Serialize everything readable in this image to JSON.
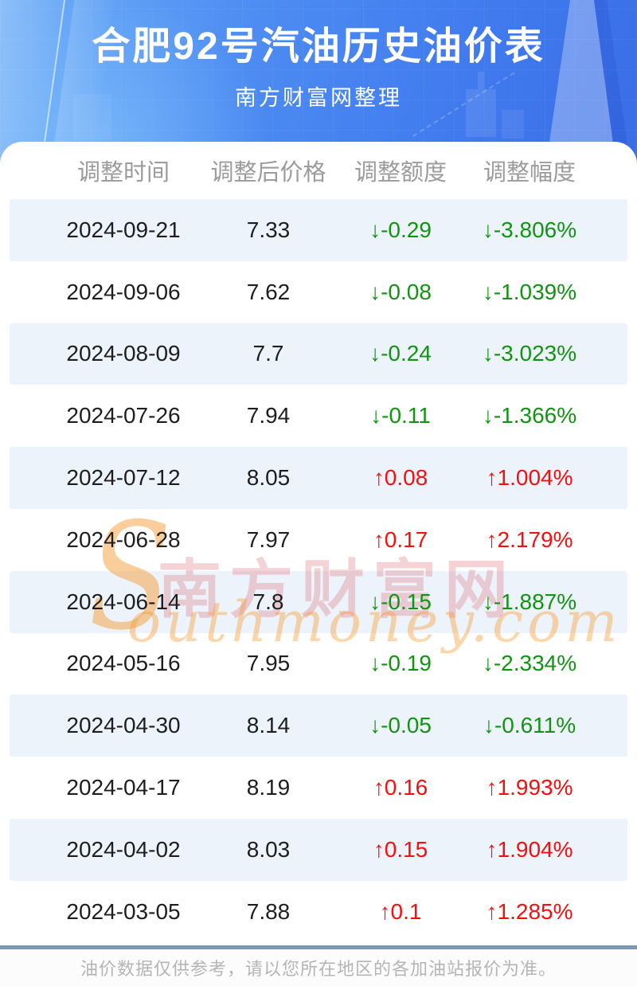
{
  "header": {
    "title": "合肥92号汽油历史油价表",
    "subtitle": "南方财富网整理"
  },
  "table": {
    "columns": [
      "调整时间",
      "调整后价格",
      "调整额度",
      "调整幅度"
    ],
    "arrows": {
      "up": "↑",
      "down": "↓"
    },
    "rows": [
      {
        "date": "2024-09-21",
        "price": "7.33",
        "change": "-0.29",
        "percent": "-3.806%",
        "direction": "down"
      },
      {
        "date": "2024-09-06",
        "price": "7.62",
        "change": "-0.08",
        "percent": "-1.039%",
        "direction": "down"
      },
      {
        "date": "2024-08-09",
        "price": "7.7",
        "change": "-0.24",
        "percent": "-3.023%",
        "direction": "down"
      },
      {
        "date": "2024-07-26",
        "price": "7.94",
        "change": "-0.11",
        "percent": "-1.366%",
        "direction": "down"
      },
      {
        "date": "2024-07-12",
        "price": "8.05",
        "change": "0.08",
        "percent": "1.004%",
        "direction": "up"
      },
      {
        "date": "2024-06-28",
        "price": "7.97",
        "change": "0.17",
        "percent": "2.179%",
        "direction": "up"
      },
      {
        "date": "2024-06-14",
        "price": "7.8",
        "change": "-0.15",
        "percent": "-1.887%",
        "direction": "down"
      },
      {
        "date": "2024-05-16",
        "price": "7.95",
        "change": "-0.19",
        "percent": "-2.334%",
        "direction": "down"
      },
      {
        "date": "2024-04-30",
        "price": "8.14",
        "change": "-0.05",
        "percent": "-0.611%",
        "direction": "down"
      },
      {
        "date": "2024-04-17",
        "price": "8.19",
        "change": "0.16",
        "percent": "1.993%",
        "direction": "up"
      },
      {
        "date": "2024-04-02",
        "price": "8.03",
        "change": "0.15",
        "percent": "1.904%",
        "direction": "up"
      },
      {
        "date": "2024-03-05",
        "price": "7.88",
        "change": "0.1",
        "percent": "1.285%",
        "direction": "up"
      }
    ]
  },
  "watermark": {
    "cn": "南方财富网",
    "en_initial": "S",
    "en_rest": "outhmoney.com"
  },
  "footer": {
    "note": "油价数据仅供参考，请以您所在地区的各加油站报价为准。"
  },
  "colors": {
    "hero_blue_light": "#6cadf7",
    "hero_blue_dark": "#3a6ce6",
    "row_stripe": "#edf3fb",
    "up_red": "#f90d0d",
    "down_green": "#119411",
    "header_gray": "#9b9b9b",
    "divider_blue_gray": "#7b99b1",
    "footer_text_gray": "#b5b5b5",
    "watermark_pink": "#d85c67",
    "watermark_orange": "#f59e38"
  },
  "chart_data": {
    "type": "table",
    "title": "合肥92号汽油历史油价表",
    "subtitle": "南方财富网整理",
    "columns": [
      "调整时间",
      "调整后价格",
      "调整额度",
      "调整幅度"
    ],
    "rows": [
      [
        "2024-09-21",
        "7.33",
        "↓-0.29",
        "↓-3.806%"
      ],
      [
        "2024-09-06",
        "7.62",
        "↓-0.08",
        "↓-1.039%"
      ],
      [
        "2024-08-09",
        "7.7",
        "↓-0.24",
        "↓-3.023%"
      ],
      [
        "2024-07-26",
        "7.94",
        "↓-0.11",
        "↓-1.366%"
      ],
      [
        "2024-07-12",
        "8.05",
        "↑0.08",
        "↑1.004%"
      ],
      [
        "2024-06-28",
        "7.97",
        "↑0.17",
        "↑2.179%"
      ],
      [
        "2024-06-14",
        "7.8",
        "↓-0.15",
        "↓-1.887%"
      ],
      [
        "2024-05-16",
        "7.95",
        "↓-0.19",
        "↓-2.334%"
      ],
      [
        "2024-04-30",
        "8.14",
        "↓-0.05",
        "↓-0.611%"
      ],
      [
        "2024-04-17",
        "8.19",
        "↑0.16",
        "↑1.993%"
      ],
      [
        "2024-04-02",
        "8.03",
        "↑0.15",
        "↑1.904%"
      ],
      [
        "2024-03-05",
        "7.88",
        "↑0.1",
        "↑1.285%"
      ]
    ]
  }
}
